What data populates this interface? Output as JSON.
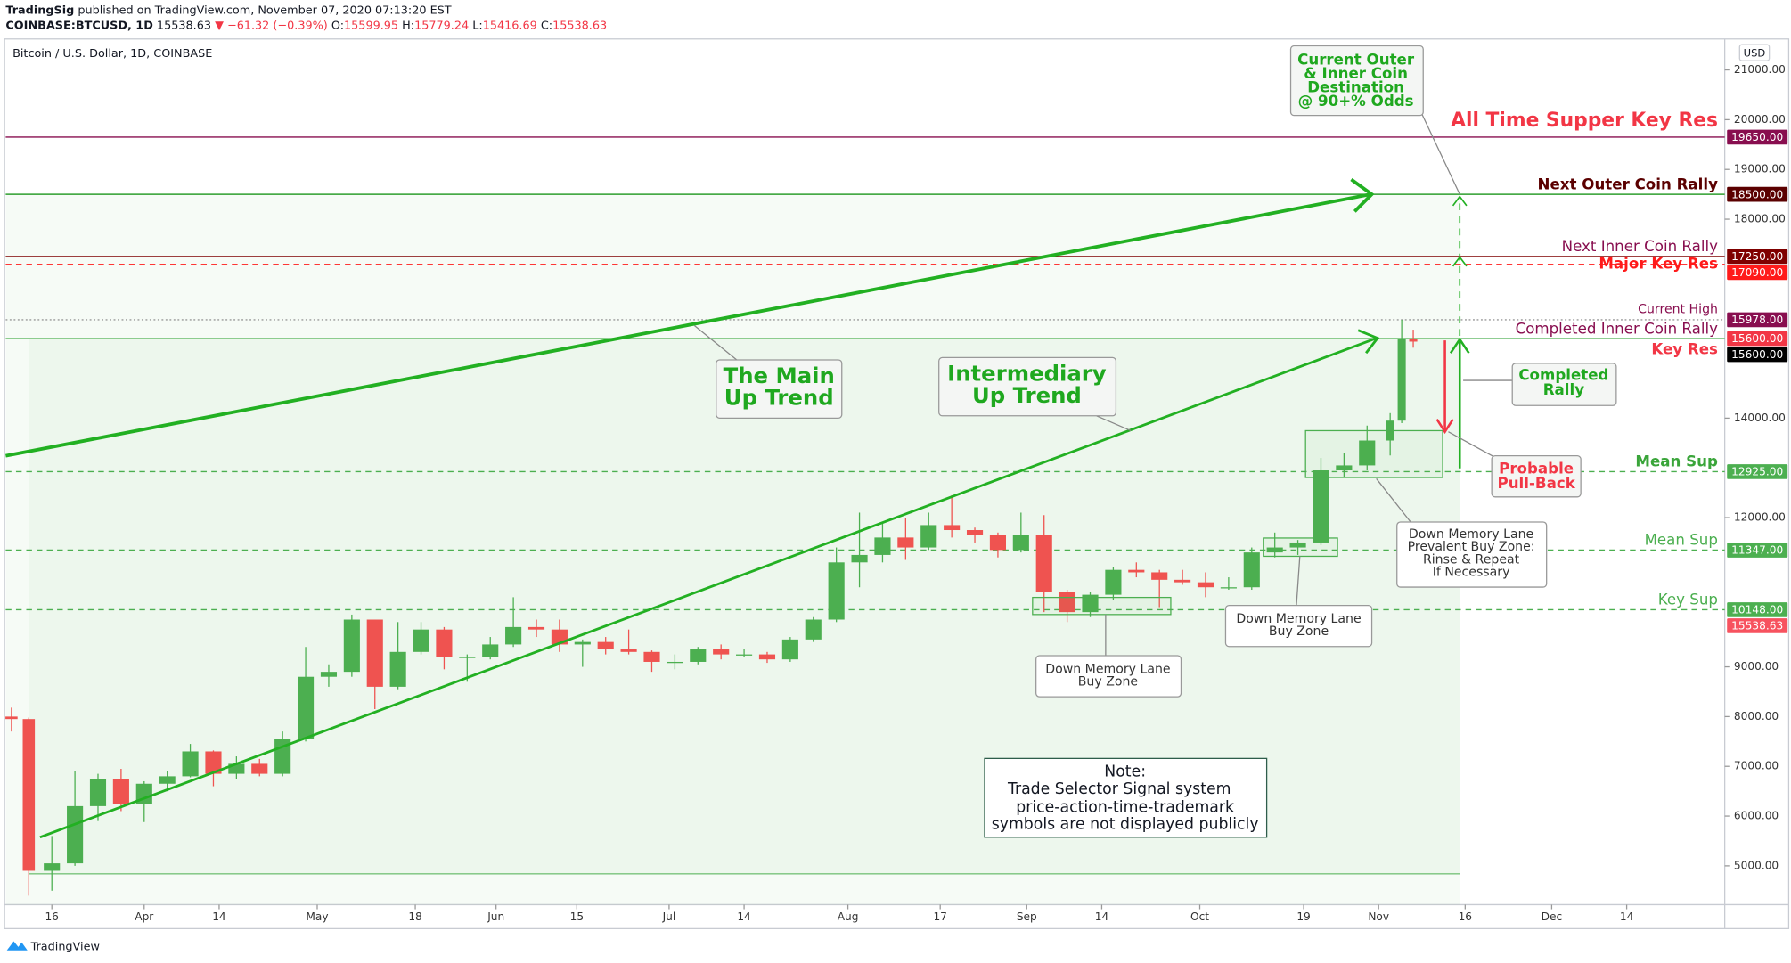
{
  "header": {
    "author": "TradingSig",
    "published": "published on TradingView.com, November 07, 2020 07:13:20 EST",
    "symbol": "COINBASE:BTCUSD, 1D",
    "change": "▼ −61.32 (−0.39%)",
    "o_prefix": "O:",
    "h_prefix": "H:",
    "l_prefix": "L:",
    "c_prefix": "C:"
  },
  "footer": "TradingView",
  "chart_data": {
    "type": "candlestick",
    "title": "Bitcoin / U.S. Dollar, 1D, COINBASE",
    "currency": "USD",
    "up_color": "#4caf50",
    "down_color": "#ef5350",
    "candles": {
      "x": [
        "2020-03-09",
        "2020-03-12",
        "2020-03-16",
        "2020-03-20",
        "2020-03-24",
        "2020-03-28",
        "2020-04-01",
        "2020-04-05",
        "2020-04-09",
        "2020-04-13",
        "2020-04-17",
        "2020-04-21",
        "2020-04-25",
        "2020-04-29",
        "2020-05-03",
        "2020-05-07",
        "2020-05-11",
        "2020-05-15",
        "2020-05-19",
        "2020-05-23",
        "2020-05-27",
        "2020-05-31",
        "2020-06-04",
        "2020-06-08",
        "2020-06-12",
        "2020-06-16",
        "2020-06-20",
        "2020-06-24",
        "2020-06-28",
        "2020-07-02",
        "2020-07-06",
        "2020-07-10",
        "2020-07-14",
        "2020-07-18",
        "2020-07-22",
        "2020-07-26",
        "2020-07-30",
        "2020-08-03",
        "2020-08-07",
        "2020-08-11",
        "2020-08-15",
        "2020-08-19",
        "2020-08-23",
        "2020-08-27",
        "2020-08-31",
        "2020-09-04",
        "2020-09-08",
        "2020-09-12",
        "2020-09-16",
        "2020-09-20",
        "2020-09-24",
        "2020-09-28",
        "2020-10-02",
        "2020-10-06",
        "2020-10-10",
        "2020-10-14",
        "2020-10-18",
        "2020-10-22",
        "2020-10-26",
        "2020-10-30",
        "2020-11-03",
        "2020-11-05",
        "2020-11-07"
      ],
      "open": [
        8000,
        7950,
        4900,
        5050,
        6200,
        6750,
        6250,
        6650,
        6800,
        7300,
        6850,
        7050,
        6850,
        7550,
        8800,
        8900,
        9950,
        8600,
        9300,
        9750,
        9200,
        9200,
        9450,
        9800,
        9750,
        9450,
        9500,
        9350,
        9300,
        9100,
        9100,
        9350,
        9250,
        9250,
        9150,
        9550,
        9950,
        11100,
        11250,
        11600,
        11400,
        11850,
        11750,
        11650,
        11350,
        11650,
        10500,
        10100,
        10450,
        10950,
        10900,
        10750,
        10700,
        10600,
        10600,
        11300,
        11400,
        11500,
        12950,
        13050,
        13550,
        13950,
        15599.95
      ],
      "high": [
        8180,
        7980,
        5600,
        6900,
        6850,
        6950,
        6700,
        6900,
        7450,
        7320,
        7200,
        7150,
        7700,
        9400,
        9050,
        10050,
        9950,
        9900,
        9900,
        9800,
        9250,
        9600,
        10400,
        9950,
        9950,
        9550,
        9600,
        9750,
        9330,
        9250,
        9400,
        9450,
        9350,
        9300,
        9600,
        10000,
        11400,
        12100,
        11900,
        12000,
        12100,
        12450,
        11800,
        11700,
        12100,
        12050,
        10550,
        10500,
        11000,
        11100,
        10950,
        10950,
        10900,
        10800,
        11400,
        11700,
        11550,
        13200,
        13300,
        13850,
        14100,
        15978,
        15779.24
      ],
      "low": [
        7700,
        4400,
        4500,
        5000,
        5900,
        6100,
        5880,
        6500,
        6780,
        6600,
        6750,
        6800,
        6800,
        7500,
        8600,
        8800,
        8150,
        8550,
        9250,
        8950,
        8700,
        9150,
        9400,
        9600,
        9300,
        9000,
        9250,
        9250,
        8900,
        8950,
        9050,
        9150,
        9200,
        9080,
        9100,
        9500,
        9900,
        10600,
        11100,
        11150,
        11350,
        11600,
        11500,
        11200,
        11300,
        10100,
        9900,
        10000,
        10350,
        10800,
        10200,
        10650,
        10400,
        10550,
        10550,
        11200,
        11250,
        11450,
        12800,
        12950,
        13250,
        13900,
        15416.69
      ],
      "close": [
        7950,
        4900,
        5050,
        6200,
        6750,
        6250,
        6650,
        6800,
        7300,
        6850,
        7050,
        6850,
        7550,
        8800,
        8900,
        9950,
        8600,
        9300,
        9750,
        9200,
        9200,
        9450,
        9800,
        9750,
        9450,
        9500,
        9350,
        9300,
        9100,
        9100,
        9350,
        9250,
        9250,
        9150,
        9550,
        9950,
        11100,
        11250,
        11600,
        11400,
        11850,
        11750,
        11650,
        11350,
        11650,
        10500,
        10100,
        10450,
        10950,
        10900,
        10750,
        10700,
        10600,
        10600,
        11300,
        11400,
        11500,
        12950,
        13050,
        13550,
        13950,
        15600,
        15538.63
      ]
    },
    "last_color": "#f7525f",
    "xlim": [
      "2020-03-08",
      "2020-12-31"
    ],
    "xticks": [
      {
        "value": "2020-03-16",
        "label": "16"
      },
      {
        "value": "2020-04-01",
        "label": "Apr"
      },
      {
        "value": "2020-04-14",
        "label": "14"
      },
      {
        "value": "2020-05-01",
        "label": "May"
      },
      {
        "value": "2020-05-18",
        "label": "18"
      },
      {
        "value": "2020-06-01",
        "label": "Jun"
      },
      {
        "value": "2020-06-15",
        "label": "15"
      },
      {
        "value": "2020-07-01",
        "label": "Jul"
      },
      {
        "value": "2020-07-14",
        "label": "14"
      },
      {
        "value": "2020-08-01",
        "label": "Aug"
      },
      {
        "value": "2020-08-17",
        "label": "17"
      },
      {
        "value": "2020-09-01",
        "label": "Sep"
      },
      {
        "value": "2020-09-14",
        "label": "14"
      },
      {
        "value": "2020-10-01",
        "label": "Oct"
      },
      {
        "value": "2020-10-19",
        "label": "19"
      },
      {
        "value": "2020-11-01",
        "label": "Nov"
      },
      {
        "value": "2020-11-16",
        "label": "16"
      },
      {
        "value": "2020-12-01",
        "label": "Dec"
      },
      {
        "value": "2020-12-14",
        "label": "14"
      }
    ],
    "ylim": [
      4220,
      21600
    ],
    "yticks": [
      {
        "value": 5000,
        "label": "5000.00"
      },
      {
        "value": 6000,
        "label": "6000.00"
      },
      {
        "value": 7000,
        "label": "7000.00"
      },
      {
        "value": 8000,
        "label": "8000.00"
      },
      {
        "value": 9000,
        "label": "9000.00"
      },
      {
        "value": 12000,
        "label": "12000.00"
      },
      {
        "value": 14000,
        "label": "14000.00"
      },
      {
        "value": 18000,
        "label": "18000.00"
      },
      {
        "value": 19000,
        "label": "19000.00"
      },
      {
        "value": 20000,
        "label": "20000.00"
      },
      {
        "value": 21000,
        "label": "21000.00"
      }
    ],
    "levels": [
      {
        "value": 19650,
        "label": "19650.00",
        "text": "All Time Supper Key Res",
        "color": "#f23645",
        "line_color": "#880e4f",
        "label_color": "#880e4f",
        "line": "solid",
        "style": "title",
        "text_side": "above"
      },
      {
        "value": 18500,
        "label": "18500.00",
        "text": "Next Outer Coin Rally",
        "color": "#5b0000",
        "line_color": "#2e9e2e",
        "label_color": "#5b0000",
        "line": "solid",
        "style": "bold",
        "text_side": "above"
      },
      {
        "value": 17250,
        "label": "17250.00",
        "text": "Next Inner Coin Rally",
        "color": "#880e4f",
        "line_color": "#7f0000",
        "label_color": "#7f0000",
        "line": "solid",
        "style": "normal",
        "text_side": "above"
      },
      {
        "value": 17090,
        "label": "17090.00",
        "text": "Major Key Res",
        "color": "#ff1a1a",
        "line_color": "#ff1a1a",
        "label_color": "#ff1a1a",
        "line": "dashed",
        "style": "bold",
        "text_side": "on"
      },
      {
        "value": 15978,
        "label": "15978.00",
        "text": "Current High",
        "color": "#880e4f",
        "line_color": "#999999",
        "label_color": "#880e4f",
        "line": "dotted",
        "style": "small",
        "text_side": "above"
      },
      {
        "value": 15600,
        "label": "15600.00",
        "text": "Completed Inner Coin Rally",
        "color": "#880e4f",
        "line_color": "#4caf50",
        "label_color": "#f23645",
        "line": "solid",
        "style": "normal",
        "text_side": "above"
      },
      {
        "value": 15600,
        "label": "15600.00",
        "text": "Key Res",
        "color": "#f23645",
        "line_color": "#f23645",
        "label_color": "#000000",
        "line": "none",
        "style": "bold",
        "text_side": "below"
      },
      {
        "value": 12925,
        "label": "12925.00",
        "text": "Mean Sup",
        "color": "#3aa53a",
        "line_color": "#4caf50",
        "label_color": "#4caf50",
        "line": "dashed",
        "style": "bold",
        "text_side": "above"
      },
      {
        "value": 11347,
        "label": "11347.00",
        "text": "Mean Sup",
        "color": "#4caf50",
        "line_color": "#4caf50",
        "label_color": "#4caf50",
        "line": "dashed",
        "style": "normal",
        "text_side": "above"
      },
      {
        "value": 10148,
        "label": "10148.00",
        "text": "Key Sup",
        "color": "#4caf50",
        "line_color": "#4caf50",
        "label_color": "#4caf50",
        "line": "dashed",
        "style": "normal",
        "text_side": "above"
      }
    ],
    "annotations": {
      "destination": [
        "Current Outer",
        "& Inner Coin",
        "Destination",
        "@ 90+% Odds"
      ],
      "main_trend": [
        "The Main",
        "Up Trend"
      ],
      "intermediary": [
        "Intermediary",
        "Up Trend"
      ],
      "completed": [
        "Completed",
        "Rally"
      ],
      "pullback": [
        "Probable",
        "Pull-Back"
      ],
      "prevalent": [
        "Down Memory Lane",
        "Prevalent Buy Zone:",
        "Rinse & Repeat",
        "If Necessary"
      ],
      "buy_zone_1": [
        "Down Memory Lane",
        "Buy Zone"
      ],
      "buy_zone_2": [
        "Down Memory Lane",
        "Buy Zone"
      ],
      "note": [
        "Note:",
        "Trade Selector Signal system",
        "price-action-time-trademark",
        "symbols are not displayed publicly"
      ]
    }
  }
}
